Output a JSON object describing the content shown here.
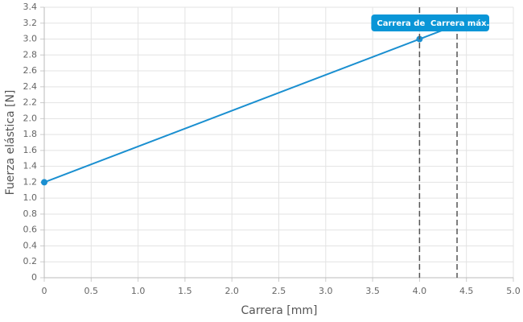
{
  "chart_data": {
    "type": "line",
    "x_label": "Carrera [mm]",
    "y_label": "Fuerza elástica [N]",
    "x": [
      0,
      4.0,
      4.4
    ],
    "series": [
      {
        "color": "#1a8fd0",
        "values": [
          1.2,
          3.0,
          3.18
        ]
      }
    ],
    "xlim": [
      0,
      5
    ],
    "ylim": [
      0,
      3.4
    ],
    "xticks": [
      0,
      0.5,
      {
        "value": 1,
        "label": "1.0"
      },
      1.5,
      {
        "value": 2,
        "label": "2.0"
      },
      2.5,
      {
        "value": 3,
        "label": "3.0"
      },
      3.5,
      {
        "value": 4,
        "label": "4.0"
      },
      4.5,
      {
        "value": 5,
        "label": "5.0"
      }
    ],
    "yticks": [
      0,
      0.2,
      0.4,
      0.6,
      0.8,
      {
        "value": 1,
        "label": "1.0"
      },
      1.2,
      1.4,
      1.6,
      1.8,
      {
        "value": 2,
        "label": "2.0"
      },
      2.2,
      2.4,
      2.6,
      2.8,
      {
        "value": 3,
        "label": "3.0"
      },
      3.2,
      3.4
    ],
    "grid": true,
    "vlines": [
      {
        "x": 4.0,
        "label": "Carrera de",
        "color": "#555555",
        "label_color": "#0a96d7"
      },
      {
        "x": 4.4,
        "label": "Carrera máx.",
        "color": "#555555",
        "label_color": "#0a96d7"
      }
    ]
  }
}
